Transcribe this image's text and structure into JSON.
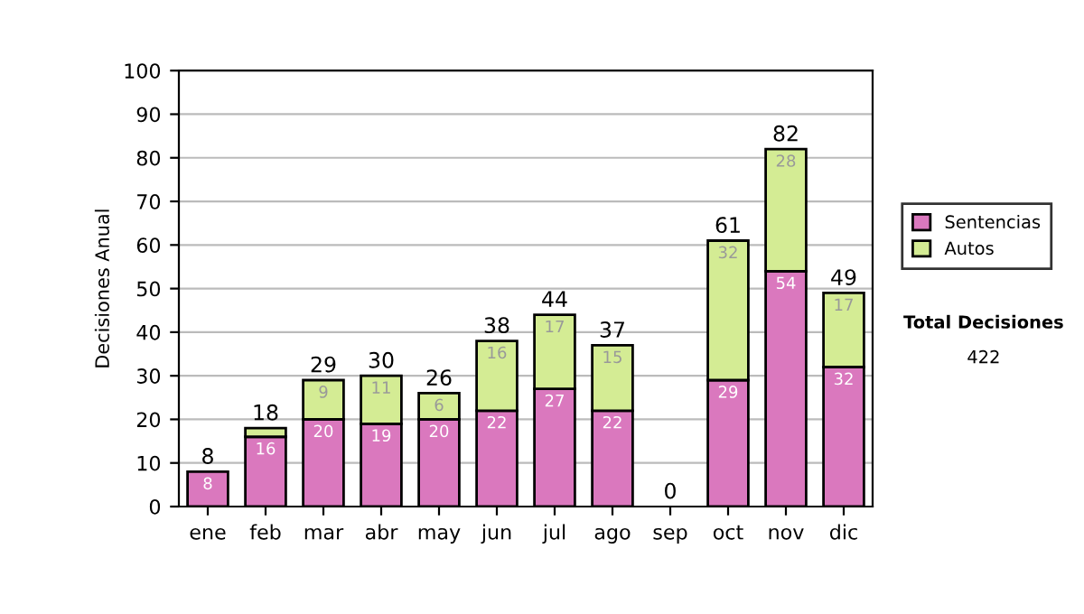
{
  "chart_data": {
    "type": "bar",
    "stacked": true,
    "ylabel": "Decisiones Anual",
    "categories": [
      "ene",
      "feb",
      "mar",
      "abr",
      "may",
      "jun",
      "jul",
      "ago",
      "sep",
      "oct",
      "nov",
      "dic"
    ],
    "series": [
      {
        "name": "Sentencias",
        "color": "#da78be",
        "values": [
          8,
          16,
          20,
          19,
          20,
          22,
          27,
          22,
          0,
          29,
          54,
          32
        ],
        "value_labels": [
          "8",
          "16",
          "20",
          "19",
          "20",
          "22",
          "27",
          "22",
          null,
          "29",
          "54",
          "32"
        ]
      },
      {
        "name": "Autos",
        "color": "#d4ec94",
        "values": [
          0,
          2,
          9,
          11,
          6,
          16,
          17,
          15,
          0,
          32,
          28,
          17
        ],
        "value_labels": [
          null,
          null,
          "9",
          "11",
          "6",
          "16",
          "17",
          "15",
          null,
          "32",
          "28",
          "17"
        ]
      }
    ],
    "totals": [
      "8",
      "18",
      "29",
      "30",
      "26",
      "38",
      "44",
      "37",
      "0",
      "61",
      "82",
      "49"
    ],
    "ylim": [
      0,
      100
    ],
    "yticks": [
      0,
      10,
      20,
      30,
      40,
      50,
      60,
      70,
      80,
      90,
      100
    ],
    "grid": "y",
    "legend": "right",
    "annotations": [
      "Total Decisiones",
      "422"
    ]
  }
}
